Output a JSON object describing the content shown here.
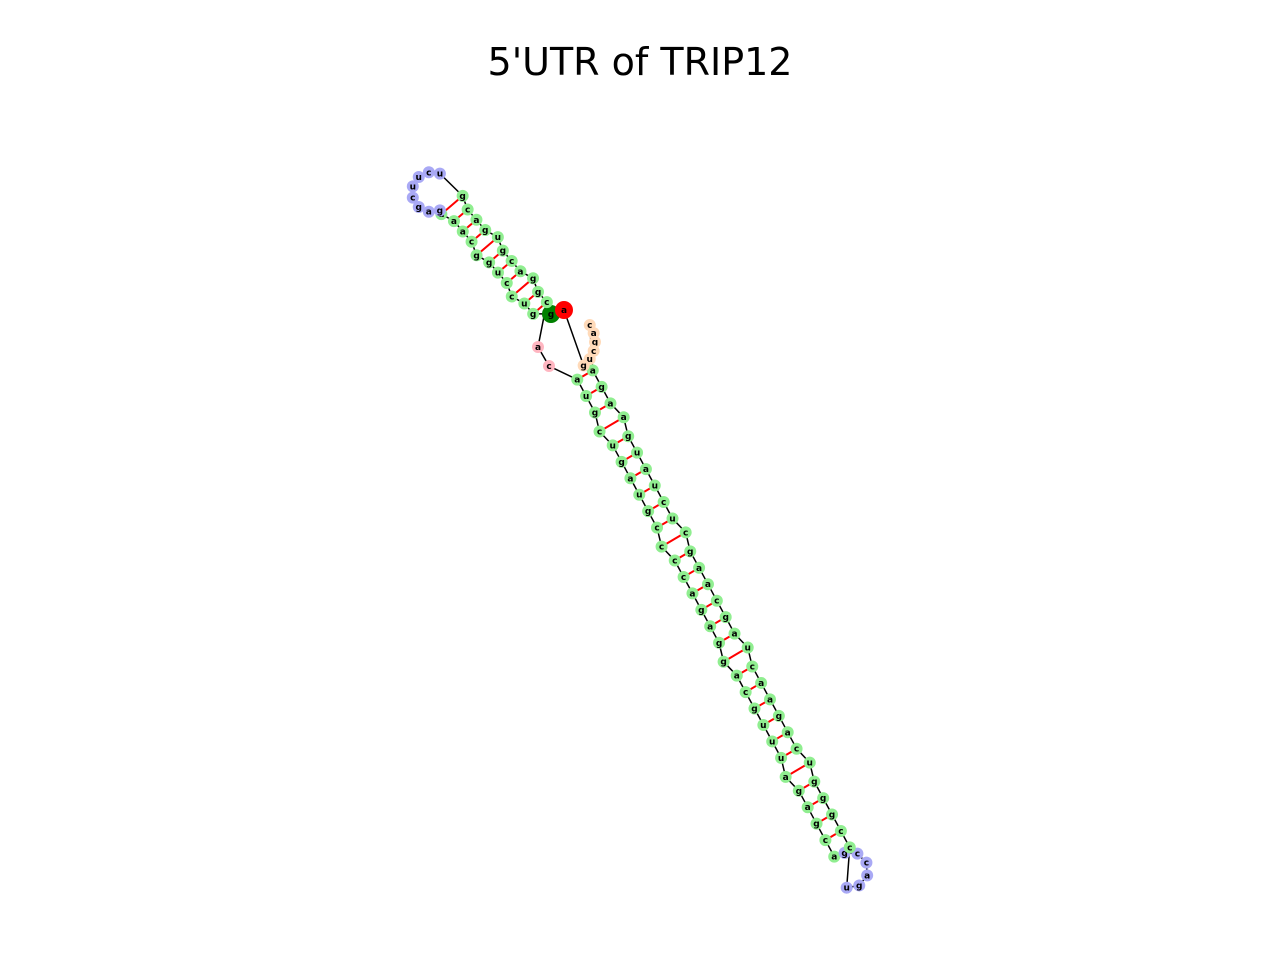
{
  "title": "5'UTR of TRIP12",
  "sequence": "gguccuggcaaagagcuucugcagugcaggcacaugcugaugccccagaggacguuuagagcagccaguccgggucagaacuagcaagcucuaugaagacagcugaguugaaguagcagaaaccugcagcuccgaaccggucgagg",
  "structure": "",
  "colors": {
    "stem": "#90ee90",
    "hairpin": "#a9a9f5",
    "interior": "#fff3a8",
    "multiloop": "#ffb6c1",
    "five_prime": "#008000",
    "three_prime": "#ff0000",
    "external": "#ffdab9",
    "pair_line": "#ff0000",
    "backbone": "#000000"
  }
}
